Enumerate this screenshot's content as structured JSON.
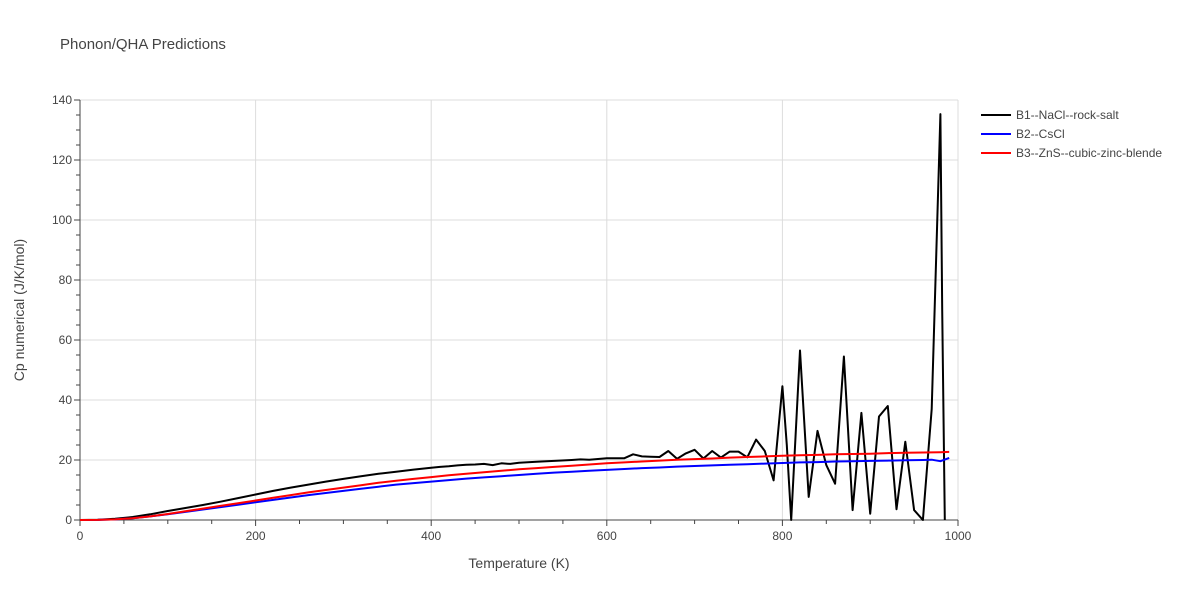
{
  "chart_data": {
    "type": "line",
    "title": "Phonon/QHA Predictions",
    "xlabel": "Temperature (K)",
    "ylabel": "Cp numerical (J/K/mol)",
    "xlim": [
      0,
      1000
    ],
    "ylim": [
      0,
      140
    ],
    "x_ticks": [
      0,
      200,
      400,
      600,
      800,
      1000
    ],
    "y_ticks": [
      0,
      20,
      40,
      60,
      80,
      100,
      120,
      140
    ],
    "grid": true,
    "legend_position": "top-right",
    "series": [
      {
        "name": "B1--NaCl--rock-salt",
        "color": "#000000",
        "x": [
          0,
          20,
          40,
          60,
          80,
          100,
          120,
          140,
          160,
          180,
          200,
          220,
          240,
          260,
          280,
          300,
          320,
          340,
          360,
          380,
          400,
          410,
          420,
          430,
          440,
          450,
          460,
          470,
          480,
          490,
          500,
          520,
          540,
          560,
          570,
          580,
          600,
          610,
          620,
          630,
          640,
          650,
          660,
          670,
          680,
          690,
          700,
          710,
          720,
          730,
          740,
          750,
          760,
          770,
          780,
          790,
          800,
          805,
          810,
          820,
          830,
          840,
          850,
          860,
          870,
          880,
          890,
          900,
          910,
          920,
          930,
          940,
          950,
          960,
          970,
          980,
          982,
          985
        ],
        "y": [
          0,
          0.1,
          0.4,
          1.0,
          1.9,
          3.0,
          4.0,
          5.0,
          6.1,
          7.3,
          8.5,
          9.7,
          10.8,
          11.8,
          12.8,
          13.7,
          14.6,
          15.4,
          16.1,
          16.8,
          17.4,
          17.7,
          17.9,
          18.2,
          18.4,
          18.5,
          18.7,
          18.3,
          18.9,
          18.7,
          19.1,
          19.4,
          19.7,
          20.0,
          20.2,
          20.1,
          20.6,
          20.6,
          20.6,
          21.9,
          21.2,
          21.1,
          21.0,
          23.0,
          20.4,
          22.2,
          23.4,
          20.5,
          23.0,
          20.8,
          22.8,
          22.8,
          20.9,
          26.8,
          23.0,
          13.2,
          44.6,
          25.0,
          0,
          56.5,
          7.7,
          29.7,
          18.3,
          12.1,
          54.5,
          3.3,
          35.7,
          2.1,
          34.5,
          38.0,
          3.6,
          26.1,
          3.3,
          0,
          37.0,
          135.3,
          70,
          0
        ]
      },
      {
        "name": "B2--CsCl",
        "color": "#0000ff",
        "x": [
          0,
          20,
          40,
          60,
          80,
          100,
          120,
          140,
          160,
          180,
          200,
          220,
          240,
          260,
          280,
          300,
          320,
          340,
          360,
          380,
          400,
          420,
          440,
          460,
          480,
          500,
          520,
          540,
          560,
          580,
          600,
          620,
          640,
          660,
          680,
          700,
          720,
          740,
          760,
          780,
          800,
          820,
          840,
          860,
          880,
          900,
          920,
          940,
          960,
          970,
          980,
          990
        ],
        "y": [
          0,
          0.05,
          0.2,
          0.6,
          1.2,
          1.9,
          2.7,
          3.5,
          4.3,
          5.1,
          5.9,
          6.7,
          7.5,
          8.3,
          9.0,
          9.7,
          10.4,
          11.1,
          11.8,
          12.3,
          12.8,
          13.3,
          13.8,
          14.2,
          14.6,
          15.0,
          15.4,
          15.8,
          16.1,
          16.4,
          16.7,
          17.0,
          17.3,
          17.5,
          17.8,
          18.0,
          18.2,
          18.4,
          18.6,
          18.8,
          19.0,
          19.2,
          19.3,
          19.5,
          19.6,
          19.7,
          19.8,
          19.9,
          20.0,
          20.1,
          19.6,
          20.7
        ]
      },
      {
        "name": "B3--ZnS--cubic-zinc-blende",
        "color": "#ff0000",
        "x": [
          0,
          20,
          40,
          60,
          80,
          100,
          120,
          140,
          160,
          180,
          200,
          220,
          240,
          260,
          280,
          300,
          320,
          340,
          360,
          380,
          400,
          420,
          440,
          460,
          480,
          500,
          520,
          540,
          560,
          580,
          600,
          620,
          640,
          660,
          680,
          700,
          720,
          740,
          760,
          780,
          800,
          820,
          840,
          860,
          880,
          900,
          920,
          940,
          960,
          980,
          990
        ],
        "y": [
          0,
          0.05,
          0.2,
          0.6,
          1.2,
          2.0,
          2.9,
          3.8,
          4.7,
          5.6,
          6.5,
          7.4,
          8.3,
          9.2,
          10.0,
          10.8,
          11.6,
          12.4,
          13.1,
          13.7,
          14.3,
          14.9,
          15.4,
          15.9,
          16.4,
          16.9,
          17.3,
          17.7,
          18.1,
          18.5,
          18.9,
          19.2,
          19.5,
          19.8,
          20.1,
          20.3,
          20.5,
          20.8,
          21.0,
          21.2,
          21.4,
          21.6,
          21.7,
          21.9,
          22.0,
          22.1,
          22.3,
          22.4,
          22.5,
          22.6,
          22.7
        ]
      }
    ]
  }
}
